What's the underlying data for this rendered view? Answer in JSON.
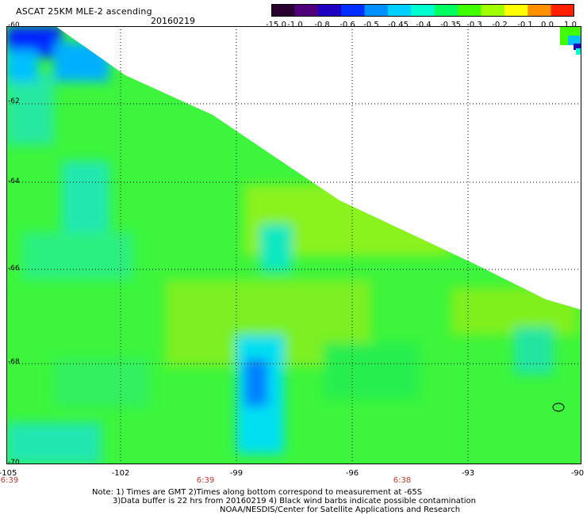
{
  "header": {
    "title": "ASCAT 25KM MLE-2 ascending",
    "date": "20160219"
  },
  "colorbar": {
    "labels": [
      "-15.0",
      "-1.0",
      "-0.8",
      "-0.6",
      "-0.5",
      "-0.45",
      "-0.4",
      "-0.35",
      "-0.3",
      "-0.2",
      "-0.1",
      "0.0",
      "1.0"
    ],
    "colors": [
      "#2a0030",
      "#50007a",
      "#2000c0",
      "#0030ff",
      "#0090ff",
      "#00d0ff",
      "#00ffd0",
      "#00ff60",
      "#40ff00",
      "#a0ff00",
      "#ffff00",
      "#ff9000",
      "#ff2000"
    ]
  },
  "axes": {
    "lat_labels": [
      "-60",
      "-62",
      "-64",
      "-66",
      "-68",
      "-70"
    ],
    "lon_labels": [
      "-105",
      "-102",
      "-99",
      "-96",
      "-93",
      "-90"
    ],
    "time_labels": [
      "6:39",
      "6:39",
      "6:38"
    ]
  },
  "notes": {
    "line1": "Note: 1) Times are GMT 2)Times along bottom correspond to measurement at -65S",
    "line2": "3)Data buffer is 22 hrs from 20160219 4) Black wind barbs indicate possible contamination",
    "line3": "NOAA/NESDIS/Center for Satellite Applications and Research"
  }
}
